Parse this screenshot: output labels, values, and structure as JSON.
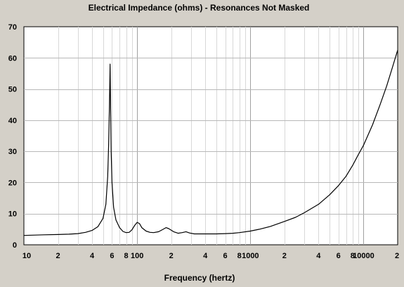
{
  "chart_data": {
    "type": "line",
    "title": "Electrical Impedance (ohms) - Resonances Not Masked",
    "xlabel": "Frequency (hertz)",
    "ylabel": "",
    "x_scale": "log",
    "xlim": [
      10,
      20000
    ],
    "ylim": [
      0,
      70
    ],
    "grid": true,
    "y_ticks": [
      {
        "value": 0,
        "label": "0"
      },
      {
        "value": 10,
        "label": "10"
      },
      {
        "value": 20,
        "label": "20"
      },
      {
        "value": 30,
        "label": "30"
      },
      {
        "value": 40,
        "label": "40"
      },
      {
        "value": 50,
        "label": "50"
      },
      {
        "value": 60,
        "label": "60"
      },
      {
        "value": 70,
        "label": "70"
      }
    ],
    "x_ticks": [
      {
        "value": 10,
        "label": "10"
      },
      {
        "value": 20,
        "label": "2"
      },
      {
        "value": 40,
        "label": "4"
      },
      {
        "value": 60,
        "label": "6"
      },
      {
        "value": 80,
        "label": "8"
      },
      {
        "value": 100,
        "label": "100"
      },
      {
        "value": 200,
        "label": "2"
      },
      {
        "value": 400,
        "label": "4"
      },
      {
        "value": 600,
        "label": "6"
      },
      {
        "value": 800,
        "label": "8"
      },
      {
        "value": 1000,
        "label": "1000"
      },
      {
        "value": 2000,
        "label": "2"
      },
      {
        "value": 4000,
        "label": "4"
      },
      {
        "value": 6000,
        "label": "6"
      },
      {
        "value": 8000,
        "label": "8"
      },
      {
        "value": 10000,
        "label": "10000"
      },
      {
        "value": 20000,
        "label": "2"
      }
    ],
    "series": [
      {
        "color": "#000000",
        "points": [
          [
            10,
            3.0
          ],
          [
            15,
            3.2
          ],
          [
            20,
            3.3
          ],
          [
            25,
            3.4
          ],
          [
            30,
            3.6
          ],
          [
            35,
            4.0
          ],
          [
            40,
            4.6
          ],
          [
            45,
            5.8
          ],
          [
            50,
            8.5
          ],
          [
            53,
            13.0
          ],
          [
            55,
            22.0
          ],
          [
            56,
            32.0
          ],
          [
            57,
            45.0
          ],
          [
            57.7,
            58.0
          ],
          [
            58.3,
            44.0
          ],
          [
            59,
            30.0
          ],
          [
            60,
            20.0
          ],
          [
            62,
            12.0
          ],
          [
            65,
            8.0
          ],
          [
            70,
            5.5
          ],
          [
            75,
            4.3
          ],
          [
            80,
            3.9
          ],
          [
            85,
            4.0
          ],
          [
            90,
            4.8
          ],
          [
            95,
            6.2
          ],
          [
            100,
            7.2
          ],
          [
            105,
            6.8
          ],
          [
            110,
            5.5
          ],
          [
            120,
            4.4
          ],
          [
            130,
            4.0
          ],
          [
            140,
            3.9
          ],
          [
            155,
            4.2
          ],
          [
            170,
            5.0
          ],
          [
            180,
            5.5
          ],
          [
            190,
            5.2
          ],
          [
            210,
            4.2
          ],
          [
            230,
            3.7
          ],
          [
            250,
            3.9
          ],
          [
            270,
            4.2
          ],
          [
            290,
            3.8
          ],
          [
            320,
            3.5
          ],
          [
            400,
            3.5
          ],
          [
            500,
            3.5
          ],
          [
            600,
            3.6
          ],
          [
            700,
            3.7
          ],
          [
            800,
            3.9
          ],
          [
            1000,
            4.4
          ],
          [
            1200,
            5.0
          ],
          [
            1500,
            5.9
          ],
          [
            2000,
            7.5
          ],
          [
            2500,
            8.8
          ],
          [
            3000,
            10.3
          ],
          [
            4000,
            13.0
          ],
          [
            5000,
            16.0
          ],
          [
            6000,
            19.0
          ],
          [
            7000,
            22.0
          ],
          [
            8000,
            25.5
          ],
          [
            9000,
            29.0
          ],
          [
            10000,
            32.0
          ],
          [
            12000,
            38.5
          ],
          [
            14000,
            45.0
          ],
          [
            16000,
            51.0
          ],
          [
            18000,
            57.0
          ],
          [
            20000,
            62.5
          ]
        ]
      }
    ]
  }
}
